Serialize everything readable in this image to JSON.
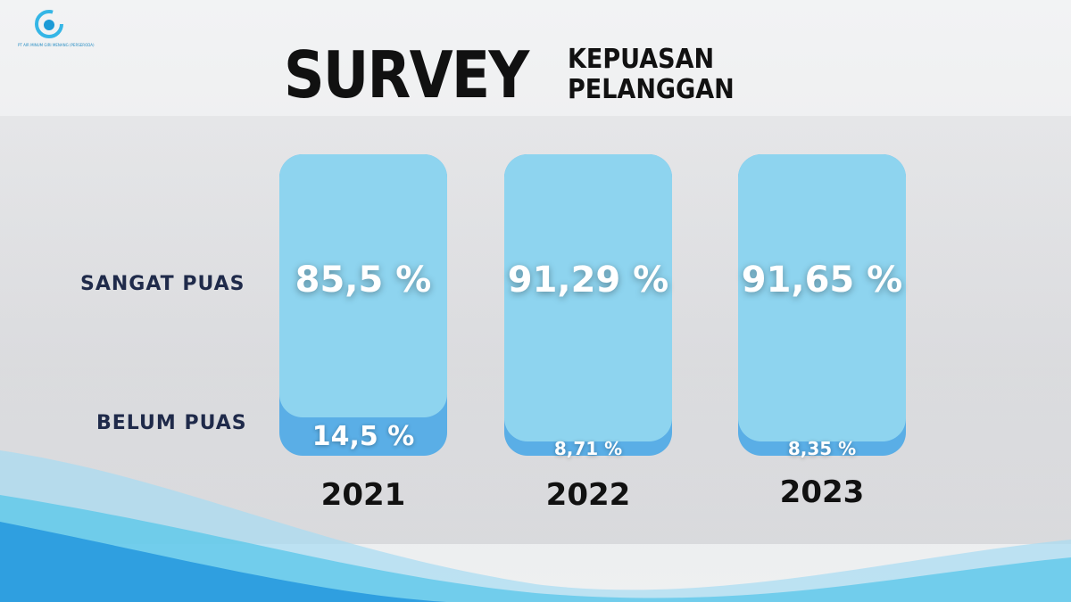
{
  "logo": {
    "text": "PT AIR MINUM GIRI MENANG (PERSERODA)"
  },
  "title": {
    "big": "SURVEY",
    "small_line1": "KEPUASAN",
    "small_line2": "PELANGGAN"
  },
  "chart_data": {
    "type": "bar",
    "stacked": true,
    "categories": [
      "2021",
      "2022",
      "2023"
    ],
    "series": [
      {
        "name": "SANGAT PUAS",
        "values": [
          85.5,
          91.29,
          91.65
        ],
        "labels": [
          "85,5 %",
          "91,29 %",
          "91,65 %"
        ],
        "color": "#8ed4ef"
      },
      {
        "name": "BELUM PUAS",
        "values": [
          14.5,
          8.71,
          8.35
        ],
        "labels": [
          "14,5 %",
          "8,71 %",
          "8,35 %"
        ],
        "color": "#5aaee6"
      }
    ],
    "ylim": [
      0,
      100
    ]
  }
}
